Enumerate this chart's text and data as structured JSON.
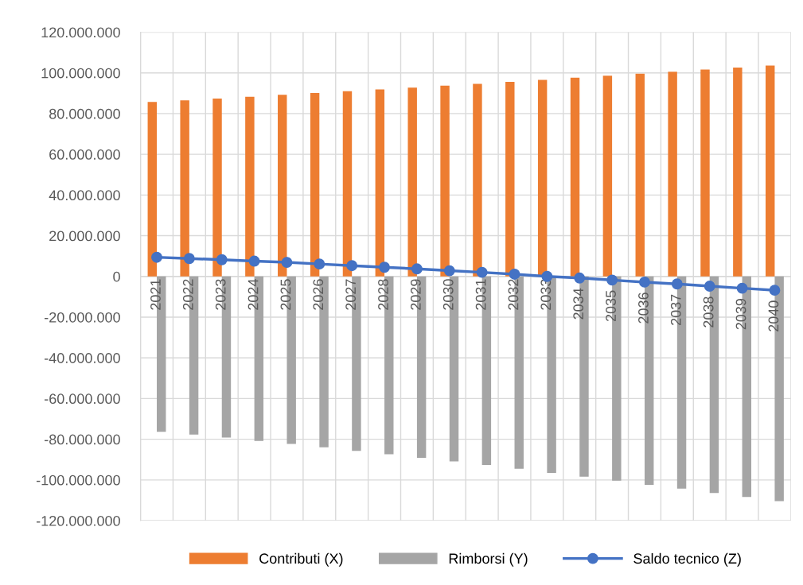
{
  "chart_data": {
    "type": "bar",
    "categories": [
      "2021",
      "2022",
      "2023",
      "2024",
      "2025",
      "2026",
      "2027",
      "2028",
      "2029",
      "2030",
      "2031",
      "2032",
      "2033",
      "2034",
      "2035",
      "2036",
      "2037",
      "2038",
      "2039",
      "2040"
    ],
    "series": [
      {
        "name": "Contributi (X)",
        "color": "#ed7d31",
        "values": [
          85700000,
          86500000,
          87400000,
          88300000,
          89200000,
          90100000,
          91000000,
          91900000,
          92800000,
          93700000,
          94600000,
          95600000,
          96600000,
          97600000,
          98600000,
          99600000,
          100600000,
          101600000,
          102600000,
          103600000
        ]
      },
      {
        "name": "Rimborsi (Y)",
        "color": "#a5a5a5",
        "values": [
          -76300000,
          -77700000,
          -79200000,
          -80800000,
          -82300000,
          -84000000,
          -85700000,
          -87400000,
          -89100000,
          -90900000,
          -92600000,
          -94500000,
          -96600000,
          -98400000,
          -100400000,
          -102400000,
          -104300000,
          -106400000,
          -108400000,
          -110400000
        ]
      },
      {
        "name": "Saldo tecnico (Z)",
        "type": "line",
        "color": "#4472c4",
        "marker": "circle",
        "values": [
          9400000,
          8800000,
          8200000,
          7500000,
          6900000,
          6100000,
          5300000,
          4500000,
          3700000,
          2800000,
          2000000,
          1100000,
          0,
          -800000,
          -1800000,
          -2800000,
          -3700000,
          -4800000,
          -5800000,
          -6800000
        ]
      }
    ],
    "ylim": [
      -120000000,
      120000000
    ],
    "yticks": [
      {
        "value": -120000000,
        "label": "-120.000.000"
      },
      {
        "value": -100000000,
        "label": "-100.000.000"
      },
      {
        "value": -80000000,
        "label": "-80.000.000"
      },
      {
        "value": -60000000,
        "label": "-60.000.000"
      },
      {
        "value": -40000000,
        "label": "-40.000.000"
      },
      {
        "value": -20000000,
        "label": "-20.000.000"
      },
      {
        "value": 0,
        "label": "0"
      },
      {
        "value": 20000000,
        "label": "20.000.000"
      },
      {
        "value": 40000000,
        "label": "40.000.000"
      },
      {
        "value": 60000000,
        "label": "60.000.000"
      },
      {
        "value": 80000000,
        "label": "80.000.000"
      },
      {
        "value": 100000000,
        "label": "100.000.000"
      },
      {
        "value": 120000000,
        "label": "120.000.000"
      }
    ],
    "grid": true,
    "legend": "bottom"
  }
}
